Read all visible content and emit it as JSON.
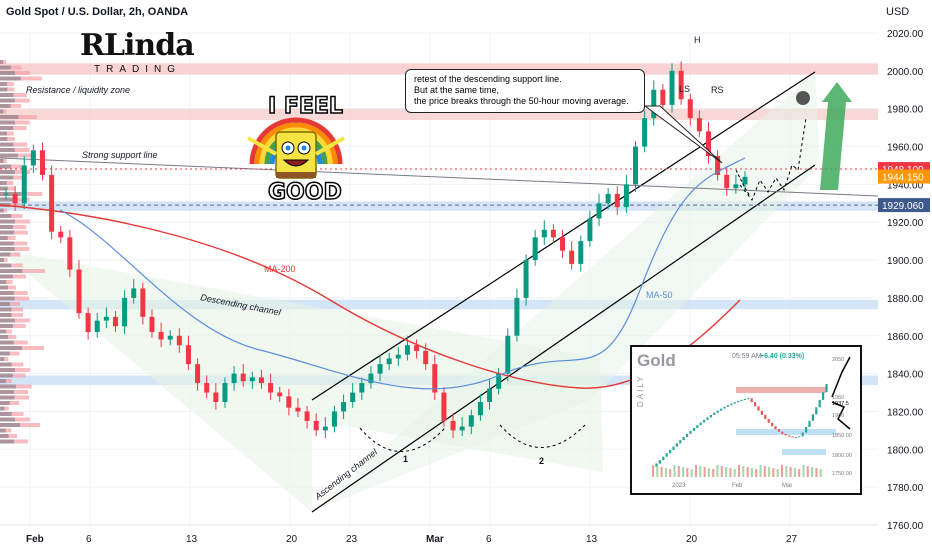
{
  "header": {
    "symbol_title": "Gold Spot / U.S. Dollar, 2h, OANDA",
    "currency": "USD"
  },
  "logo": {
    "main": "Linda",
    "sub": "TRADING",
    "initial": "R"
  },
  "meme": {
    "top": "I FEEL",
    "bottom": "GOOD"
  },
  "callout": {
    "line1": "retest of the descending support line.",
    "line2": "But at the same time,",
    "line3": "the price breaks through the 50-hour moving average."
  },
  "annotations": {
    "resistance_zone": "Resistance / liquidity zone",
    "strong_support": "Strong support line",
    "descending_channel": "Descending channel",
    "ascending_channel": "Ascending channel",
    "ma200": "MA-200",
    "ma50": "MA-50",
    "ls": "LS",
    "h": "H",
    "rs": "RS",
    "one": "1",
    "two": "2"
  },
  "price_labels": {
    "current_red": "1948.100",
    "current_orange": "1944.150",
    "support_blue": "1929.060"
  },
  "colors": {
    "up": "#089981",
    "down": "#f23645",
    "ma200": "#e53935",
    "ma50": "#5b8ddb",
    "zone_red": "#f7c8c8",
    "zone_blue": "#c9dff5",
    "channel_green": "#e6f4e6",
    "label_red": "#f23645",
    "label_orange": "#ff9800",
    "label_blue": "#3d5a8c"
  },
  "inset": {
    "title": "Gold",
    "timeframe": "DAILY",
    "time": "05:59 AM",
    "change": "+6.40 (0.33%)",
    "prices": [
      "2050",
      "1950",
      "1900",
      "1850.00",
      "1800.00",
      "1750.00"
    ],
    "months": [
      "2023",
      "Feb",
      "Mar"
    ],
    "current_price": "1937.5"
  },
  "chart_data": {
    "type": "candlestick",
    "title": "Gold Spot / U.S. Dollar, 2h, OANDA",
    "ylabel": "USD",
    "ylim": [
      1760,
      2020
    ],
    "y_ticks": [
      2020,
      2000,
      1980,
      1960,
      1940,
      1920,
      1900,
      1880,
      1860,
      1840,
      1820,
      1800,
      1780,
      1760
    ],
    "x_ticks": [
      "Feb",
      "6",
      "13",
      "20",
      "23",
      "Mar",
      "6",
      "13",
      "20",
      "27"
    ],
    "path_closes": [
      1935,
      1930,
      1950,
      1958,
      1945,
      1915,
      1912,
      1895,
      1872,
      1862,
      1868,
      1870,
      1865,
      1880,
      1885,
      1870,
      1862,
      1858,
      1860,
      1855,
      1845,
      1835,
      1830,
      1825,
      1835,
      1840,
      1836,
      1838,
      1835,
      1830,
      1828,
      1822,
      1820,
      1815,
      1810,
      1812,
      1820,
      1825,
      1830,
      1835,
      1840,
      1845,
      1848,
      1850,
      1855,
      1852,
      1845,
      1830,
      1815,
      1810,
      1812,
      1818,
      1825,
      1832,
      1840,
      1860,
      1880,
      1900,
      1912,
      1916,
      1912,
      1905,
      1898,
      1910,
      1922,
      1930,
      1935,
      1928,
      1940,
      1960,
      1975,
      1990,
      1982,
      2000,
      1985,
      1975,
      1968,
      1955,
      1945,
      1938,
      1940,
      1944
    ],
    "levels": {
      "resistance_zone": [
        1998,
        2004
      ],
      "upper_resistance_zone": [
        1974,
        1980
      ],
      "current_price": 1948.1,
      "secondary_price": 1944.15,
      "support": 1929.06,
      "mid_zone": [
        1874,
        1879
      ],
      "low_zone": [
        1834,
        1839
      ]
    },
    "grid": true,
    "legend": "none"
  }
}
